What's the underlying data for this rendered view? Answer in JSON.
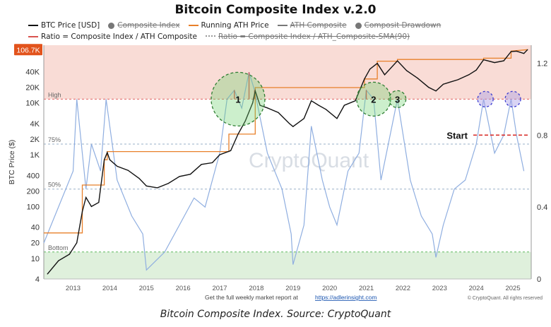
{
  "caption": "Bitcoin Composite Index. Source: CryptoQuant",
  "chart_data": {
    "type": "line",
    "title": "Bitcoin Composite Index v.2.0",
    "ylabel": "BTC Price ($)",
    "y_scale": "log",
    "ylim": [
      4,
      130000
    ],
    "y2lim": [
      0,
      1.3
    ],
    "xlim": [
      2012.2,
      2025.5
    ],
    "y_ticks": [
      "4",
      "10",
      "20",
      "40",
      "100",
      "200",
      "400",
      "1K",
      "2K",
      "4K",
      "10K",
      "20K",
      "40K"
    ],
    "y_tick_values": [
      4,
      10,
      20,
      40,
      100,
      200,
      400,
      1000,
      2000,
      4000,
      10000,
      20000,
      40000
    ],
    "y2_ticks": [
      "0",
      "0.4",
      "0.8",
      "1.2"
    ],
    "y2_tick_values": [
      0,
      0.4,
      0.8,
      1.2
    ],
    "x_ticks": [
      "2013",
      "2014",
      "2015",
      "2016",
      "2017",
      "2018",
      "2019",
      "2020",
      "2021",
      "2022",
      "2023",
      "2024",
      "2025"
    ],
    "x_tick_values": [
      2013,
      2014,
      2015,
      2016,
      2017,
      2018,
      2019,
      2020,
      2021,
      2022,
      2023,
      2024,
      2025
    ],
    "current_price_label": "106.7K",
    "current_price": 106700,
    "bands": [
      {
        "name": "High",
        "value": 1.0,
        "color": "#f9dcd6"
      },
      {
        "name": "75%",
        "value": 0.75
      },
      {
        "name": "50%",
        "value": 0.5
      },
      {
        "name": "Bottom",
        "value": 0.15,
        "color": "#dff0dc"
      }
    ],
    "legend": [
      {
        "name": "BTC Price [USD]",
        "color": "#111111",
        "style": "line",
        "active": true
      },
      {
        "name": "Composite Index",
        "color": "#777777",
        "style": "dot",
        "active": false
      },
      {
        "name": "Running ATH Price",
        "color": "#e8802a",
        "style": "line",
        "active": true
      },
      {
        "name": "ATH Composite",
        "color": "#777777",
        "style": "line",
        "active": false
      },
      {
        "name": "Composit Drawdown",
        "color": "#777777",
        "style": "dot",
        "active": false
      },
      {
        "name": "Ratio = Composite Index / ATH Composite",
        "color": "#d9534f",
        "style": "line",
        "active": true
      },
      {
        "name": "Ratio = Composite Index / ATH_Composite-SMA(90)",
        "color": "#999999",
        "style": "dotted",
        "active": false
      }
    ],
    "series": [
      {
        "name": "BTC Price [USD]",
        "x": [
          2012.3,
          2012.6,
          2012.9,
          2013.1,
          2013.25,
          2013.35,
          2013.5,
          2013.7,
          2013.85,
          2013.93,
          2014.0,
          2014.2,
          2014.5,
          2014.8,
          2015.0,
          2015.3,
          2015.6,
          2015.9,
          2016.2,
          2016.5,
          2016.8,
          2017.0,
          2017.3,
          2017.5,
          2017.7,
          2017.9,
          2017.97,
          2018.1,
          2018.3,
          2018.6,
          2018.9,
          2019.0,
          2019.3,
          2019.5,
          2019.7,
          2019.9,
          2020.2,
          2020.4,
          2020.7,
          2020.95,
          2021.1,
          2021.3,
          2021.5,
          2021.85,
          2022.1,
          2022.4,
          2022.7,
          2022.9,
          2023.1,
          2023.5,
          2023.8,
          2024.0,
          2024.2,
          2024.5,
          2024.75,
          2024.95,
          2025.1,
          2025.3,
          2025.4
        ],
        "values": [
          5,
          9,
          12,
          20,
          80,
          150,
          100,
          120,
          800,
          1100,
          800,
          600,
          500,
          350,
          250,
          230,
          280,
          380,
          420,
          650,
          700,
          1000,
          1200,
          2500,
          4500,
          10000,
          17000,
          9000,
          8000,
          6500,
          4000,
          3500,
          5000,
          11000,
          9000,
          7500,
          5000,
          9000,
          11000,
          29000,
          45000,
          58000,
          35000,
          65000,
          42000,
          30000,
          20000,
          17000,
          23000,
          28000,
          35000,
          43000,
          68000,
          60000,
          65000,
          98000,
          100000,
          90000,
          106700
        ]
      },
      {
        "name": "Running ATH Price",
        "x": [
          2012.2,
          2013.25,
          2013.25,
          2013.85,
          2013.85,
          2013.93,
          2013.93,
          2017.25,
          2017.25,
          2017.97,
          2017.97,
          2020.95,
          2020.95,
          2021.3,
          2021.3,
          2021.85,
          2021.85,
          2024.2,
          2024.2,
          2024.95,
          2024.95,
          2025.4
        ],
        "values": [
          31,
          31,
          260,
          260,
          800,
          800,
          1150,
          1150,
          2500,
          2500,
          19800,
          19800,
          29000,
          29000,
          64000,
          64000,
          69000,
          69000,
          73000,
          73000,
          100000,
          106700
        ]
      },
      {
        "name": "Ratio = Composite Index / ATH Composite",
        "x": [
          2012.2,
          2013.0,
          2013.1,
          2013.2,
          2013.35,
          2013.5,
          2013.75,
          2013.9,
          2014.2,
          2014.6,
          2014.9,
          2015.0,
          2015.5,
          2015.9,
          2016.3,
          2016.6,
          2017.0,
          2017.2,
          2017.4,
          2017.6,
          2017.8,
          2017.95,
          2018.3,
          2018.7,
          2018.95,
          2019.0,
          2019.3,
          2019.5,
          2019.8,
          2020.0,
          2020.2,
          2020.5,
          2020.8,
          2021.0,
          2021.2,
          2021.4,
          2021.6,
          2021.85,
          2022.2,
          2022.5,
          2022.8,
          2022.9,
          2023.1,
          2023.4,
          2023.7,
          2024.0,
          2024.2,
          2024.5,
          2024.75,
          2024.95,
          2025.1,
          2025.3
        ],
        "values": [
          0.2,
          0.6,
          1.0,
          0.8,
          0.5,
          0.75,
          0.6,
          1.0,
          0.55,
          0.35,
          0.25,
          0.05,
          0.15,
          0.3,
          0.45,
          0.4,
          0.7,
          1.0,
          1.05,
          0.95,
          1.15,
          1.05,
          0.7,
          0.5,
          0.25,
          0.08,
          0.3,
          0.85,
          0.55,
          0.4,
          0.3,
          0.6,
          0.7,
          1.05,
          1.0,
          0.55,
          0.75,
          1.0,
          0.55,
          0.35,
          0.25,
          0.12,
          0.3,
          0.5,
          0.55,
          0.75,
          1.0,
          0.7,
          0.8,
          1.0,
          0.8,
          0.6
        ]
      }
    ],
    "annotations": [
      {
        "type": "circle",
        "label": "1",
        "x": 2017.5,
        "value": 1.0,
        "style": "green"
      },
      {
        "type": "circle",
        "label": "2",
        "x": 2021.2,
        "value": 1.0,
        "style": "green"
      },
      {
        "type": "circle",
        "label": "3",
        "x": 2021.85,
        "value": 1.0,
        "style": "green"
      },
      {
        "type": "circle",
        "label": "",
        "x": 2024.25,
        "value": 1.0,
        "style": "blue"
      },
      {
        "type": "circle",
        "label": "",
        "x": 2025.0,
        "value": 1.0,
        "style": "blue"
      },
      {
        "type": "marker",
        "label": "Start",
        "value": 0.8
      }
    ],
    "footer_text": "Get the full weekly market report at",
    "footer_link": "https://adlerinsight.com",
    "watermark": "CryptoQuant",
    "copyright": "© CryptoQuant. All rights reserved"
  }
}
